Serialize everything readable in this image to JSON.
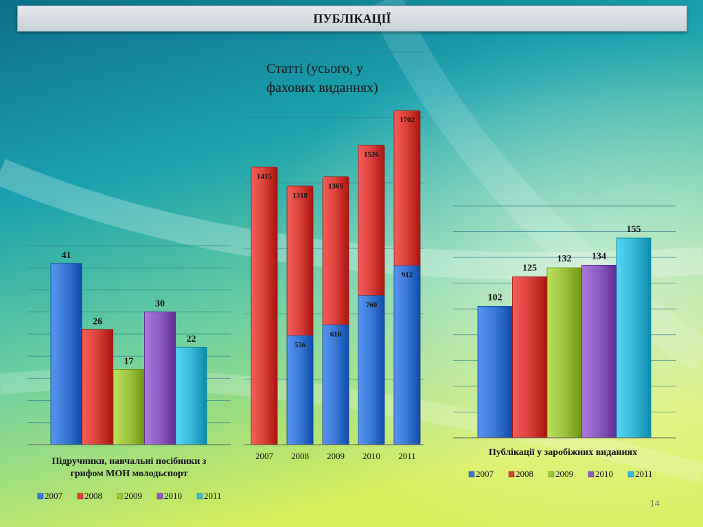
{
  "slide": {
    "title": "ПУБЛІКАЦІЇ",
    "page_number": "14"
  },
  "colors": {
    "2007": "#3b78d6",
    "2008": "#d9403b",
    "2009": "#9cc43e",
    "2010": "#8e5cc0",
    "2011": "#38b8d8"
  },
  "chart_data": [
    {
      "type": "bar",
      "id": "textbooks",
      "title": "Підручники, навчальні посібники з грифом МОН молодьспорт",
      "categories": [
        "2007",
        "2008",
        "2009",
        "2010",
        "2011"
      ],
      "values": [
        41,
        26,
        17,
        30,
        22
      ],
      "ylim": [
        0,
        45
      ],
      "grid": true,
      "legend": "bottom",
      "legend_entries": [
        "2007",
        "2008",
        "2009",
        "2010",
        "2011"
      ]
    },
    {
      "type": "bar",
      "id": "articles",
      "title": "Статті (усього, у фахових виданнях)",
      "categories": [
        "2007",
        "2008",
        "2009",
        "2010",
        "2011"
      ],
      "series": [
        {
          "values": [
            0,
            556,
            610,
            760,
            912
          ]
        },
        {
          "values": [
            1415,
            1318,
            1365,
            1526,
            1702
          ]
        }
      ],
      "ylim": [
        0,
        2000
      ],
      "grid": true
    },
    {
      "type": "bar",
      "id": "foreign",
      "title": "Публікації у заробіжних виданнях",
      "categories": [
        "2007",
        "2008",
        "2009",
        "2010",
        "2011"
      ],
      "values": [
        102,
        125,
        132,
        134,
        155
      ],
      "ylim": [
        0,
        180
      ],
      "grid": true,
      "legend": "bottom",
      "legend_entries": [
        "2007",
        "2008",
        "2009",
        "2010",
        "2011"
      ]
    }
  ]
}
